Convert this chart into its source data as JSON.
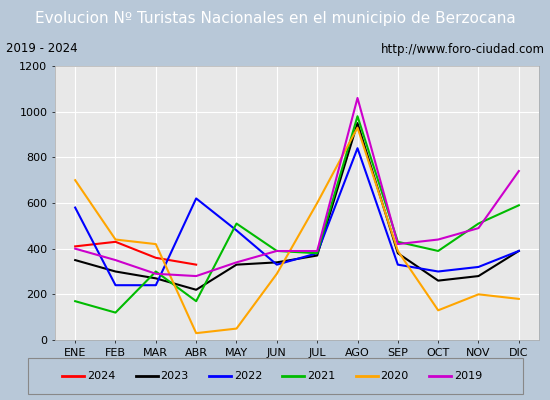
{
  "title": "Evolucion Nº Turistas Nacionales en el municipio de Berzocana",
  "subtitle_left": "2019 - 2024",
  "subtitle_right": "http://www.foro-ciudad.com",
  "months": [
    "ENE",
    "FEB",
    "MAR",
    "ABR",
    "MAY",
    "JUN",
    "JUL",
    "AGO",
    "SEP",
    "OCT",
    "NOV",
    "DIC"
  ],
  "series": {
    "2024": [
      410,
      430,
      360,
      330,
      null,
      null,
      null,
      null,
      null,
      null,
      null,
      null
    ],
    "2023": [
      350,
      300,
      270,
      220,
      330,
      340,
      370,
      950,
      380,
      260,
      280,
      390
    ],
    "2022": [
      580,
      240,
      240,
      620,
      480,
      330,
      380,
      840,
      330,
      300,
      320,
      390
    ],
    "2021": [
      170,
      120,
      300,
      170,
      510,
      390,
      380,
      980,
      430,
      390,
      510,
      590
    ],
    "2020": [
      700,
      440,
      420,
      30,
      50,
      290,
      600,
      930,
      390,
      130,
      200,
      180
    ],
    "2019": [
      400,
      350,
      290,
      280,
      340,
      390,
      390,
      1060,
      420,
      440,
      490,
      740
    ]
  },
  "colors": {
    "2024": "#ff0000",
    "2023": "#000000",
    "2022": "#0000ff",
    "2021": "#00bb00",
    "2020": "#ffa500",
    "2019": "#cc00cc"
  },
  "ylim": [
    0,
    1200
  ],
  "yticks": [
    0,
    200,
    400,
    600,
    800,
    1000,
    1200
  ],
  "title_bg_color": "#4a6fa5",
  "title_text_color": "#ffffff",
  "outer_bg_color": "#b8c8d8",
  "plot_bg_color": "#e8e8e8",
  "grid_color": "#ffffff",
  "title_fontsize": 11,
  "axis_fontsize": 8,
  "legend_fontsize": 8
}
